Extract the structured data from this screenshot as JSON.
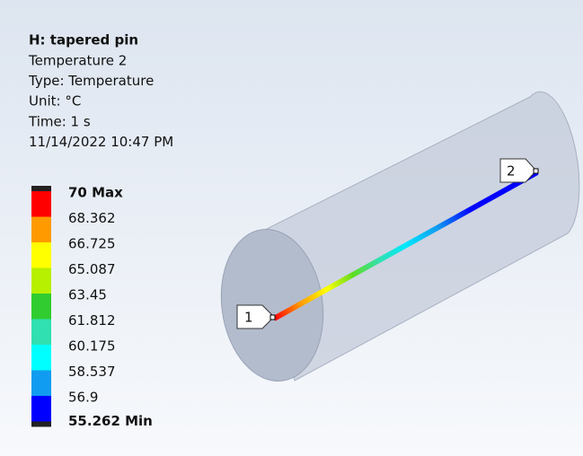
{
  "header": {
    "title": "H: tapered pin",
    "lines": [
      "Temperature 2",
      "Type: Temperature",
      "Unit: °C",
      "Time: 1 s",
      "11/14/2022 10:47 PM"
    ]
  },
  "legend": {
    "labels": [
      "70 Max",
      "68.362",
      "66.725",
      "65.087",
      "63.45",
      "61.812",
      "60.175",
      "58.537",
      "56.9",
      "55.262 Min"
    ],
    "colors": [
      "#ff0000",
      "#ff9a00",
      "#ffff00",
      "#b7f000",
      "#30cc30",
      "#30e0b0",
      "#00ffff",
      "#109cf0",
      "#0000ff"
    ]
  },
  "probes": [
    "1",
    "2"
  ]
}
